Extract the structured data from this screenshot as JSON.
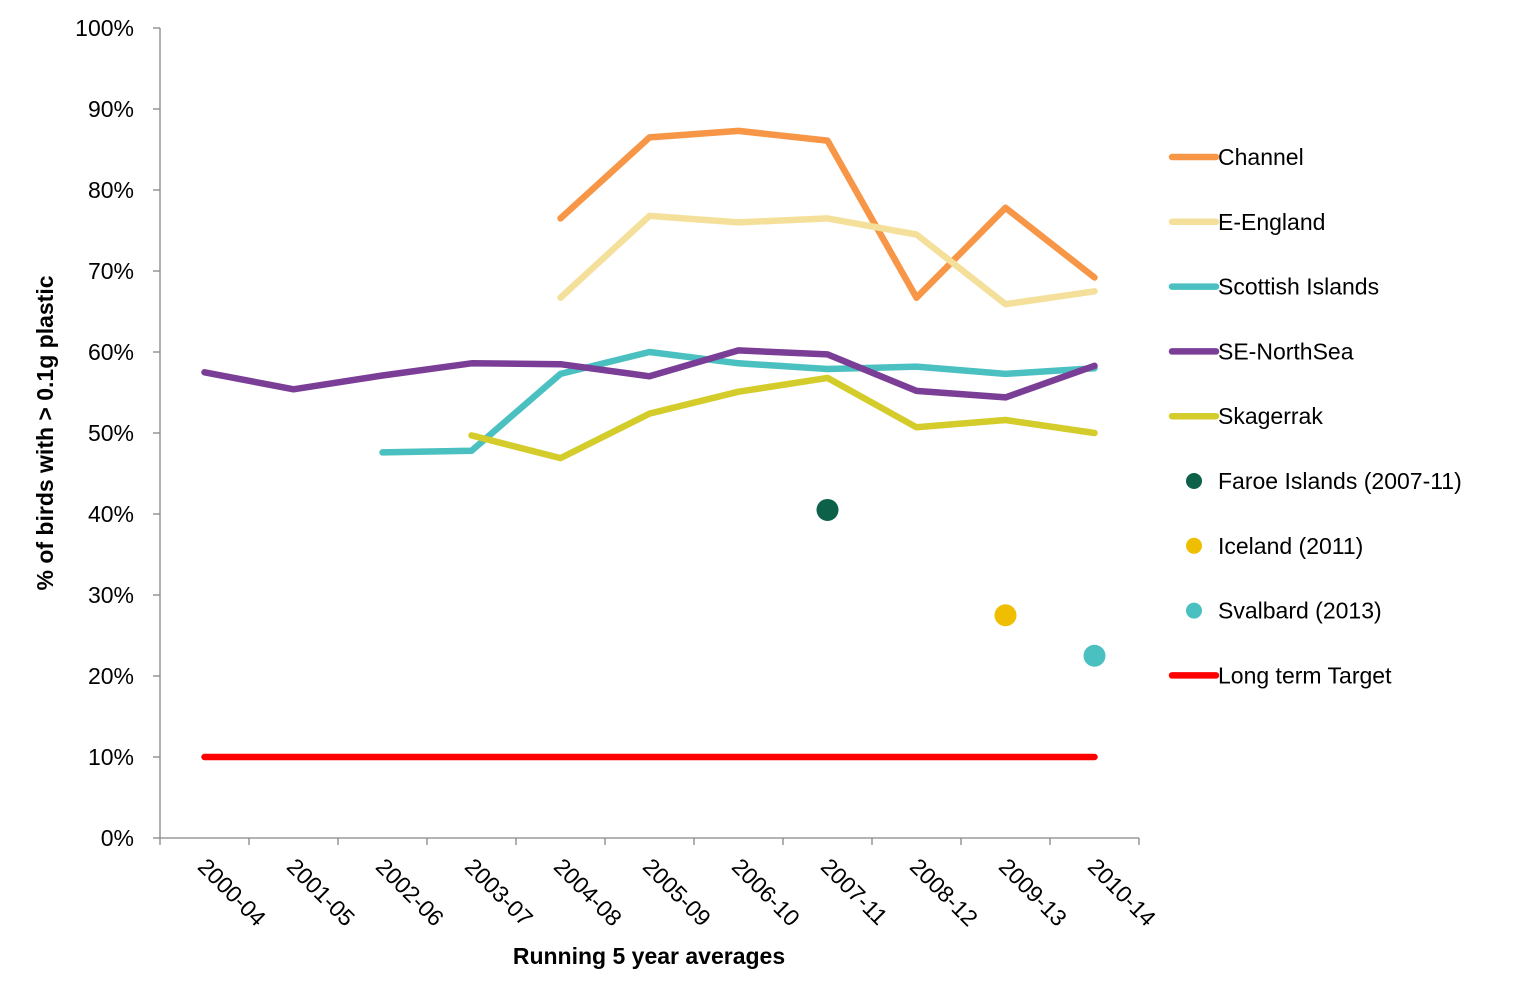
{
  "chart_data": {
    "type": "line",
    "xlabel": "Running 5 year averages",
    "ylabel": "% of birds with > 0.1g plastic",
    "ylim": [
      0,
      100
    ],
    "yticks": [
      "0%",
      "10%",
      "20%",
      "30%",
      "40%",
      "50%",
      "60%",
      "70%",
      "80%",
      "90%",
      "100%"
    ],
    "categories": [
      "2000-04",
      "2001-05",
      "2002-06",
      "2003-07",
      "2004-08",
      "2005-09",
      "2006-10",
      "2007-11",
      "2008-12",
      "2009-13",
      "2010-14"
    ],
    "grid": false,
    "legend_position": "right",
    "series": [
      {
        "name": "Channel",
        "color": "#F79646",
        "kind": "line",
        "values": [
          null,
          null,
          null,
          null,
          76.5,
          86.5,
          87.3,
          86.1,
          66.7,
          77.8,
          69.2
        ]
      },
      {
        "name": "E-England",
        "color": "#F5E09B",
        "kind": "line",
        "values": [
          null,
          null,
          null,
          null,
          66.7,
          76.8,
          76.0,
          76.5,
          74.5,
          65.9,
          67.5
        ]
      },
      {
        "name": "Scottish Islands",
        "color": "#4BC0C0",
        "kind": "line",
        "values": [
          null,
          null,
          47.6,
          47.8,
          57.3,
          60.0,
          58.6,
          57.9,
          58.2,
          57.3,
          58.0
        ]
      },
      {
        "name": "SE-NorthSea",
        "color": "#7B3E96",
        "kind": "line",
        "values": [
          57.5,
          55.4,
          57.1,
          58.6,
          58.5,
          57.0,
          60.2,
          59.7,
          55.2,
          54.4,
          58.3
        ]
      },
      {
        "name": "Skagerrak",
        "color": "#D4CC2A",
        "kind": "line",
        "values": [
          null,
          null,
          null,
          49.7,
          46.9,
          52.4,
          55.1,
          56.8,
          50.7,
          51.6,
          50.0
        ]
      },
      {
        "name": "Faroe Islands (2007-11)",
        "color": "#0D6148",
        "kind": "point",
        "x": "2007-11",
        "value": 40.5
      },
      {
        "name": "Iceland (2011)",
        "color": "#EFBE00",
        "kind": "point",
        "x": "2009-13",
        "value": 27.5
      },
      {
        "name": "Svalbard (2013)",
        "color": "#4BC0C0",
        "kind": "point",
        "x": "2010-14",
        "value": 22.5
      },
      {
        "name": "Long term Target",
        "color": "#FF0000",
        "kind": "line",
        "values": [
          10,
          10,
          10,
          10,
          10,
          10,
          10,
          10,
          10,
          10,
          10
        ]
      }
    ]
  }
}
